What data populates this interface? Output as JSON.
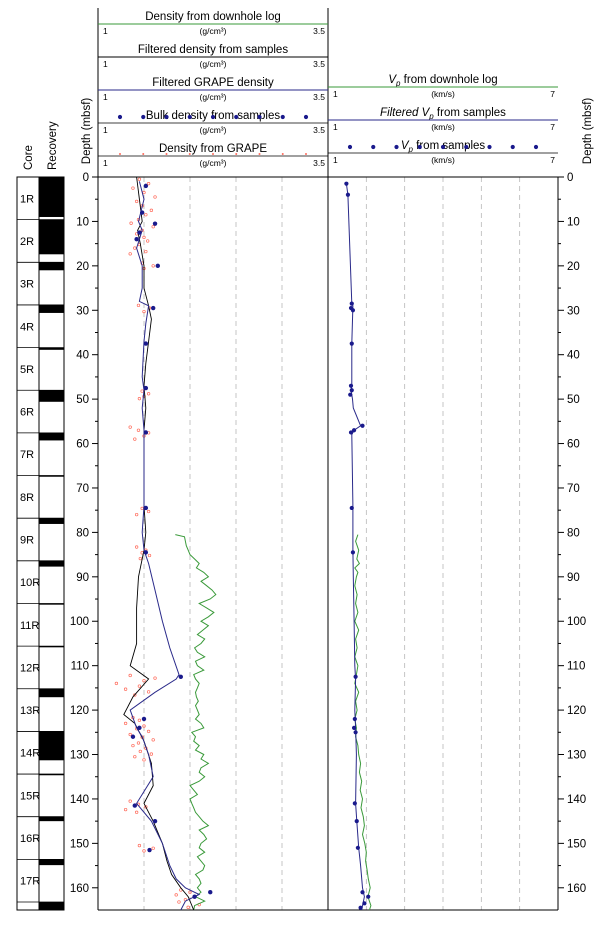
{
  "chart_data": {
    "type": "line",
    "depth_label": "Depth (mbsf)",
    "depth_range": [
      0,
      165
    ],
    "depth_ticks": [
      0,
      10,
      20,
      30,
      40,
      50,
      60,
      70,
      80,
      90,
      100,
      110,
      120,
      130,
      140,
      150,
      160
    ],
    "grid": "dashed-vertical",
    "core_column": {
      "core_label": "Core",
      "recovery_label": "Recovery",
      "cores": [
        {
          "name": "1R",
          "top": 0,
          "bottom": 9.6,
          "recovery": [
            0,
            9.0
          ]
        },
        {
          "name": "2R",
          "top": 9.6,
          "bottom": 19.2,
          "recovery": [
            9.6,
            17.4
          ]
        },
        {
          "name": "3R",
          "top": 19.2,
          "bottom": 28.8,
          "recovery": [
            19.2,
            21.0
          ]
        },
        {
          "name": "4R",
          "top": 28.8,
          "bottom": 38.4,
          "recovery": [
            28.8,
            30.6
          ]
        },
        {
          "name": "5R",
          "top": 38.4,
          "bottom": 48.0,
          "recovery": [
            38.4,
            38.9
          ]
        },
        {
          "name": "6R",
          "top": 48.0,
          "bottom": 57.6,
          "recovery": [
            48.0,
            50.6
          ]
        },
        {
          "name": "7R",
          "top": 57.6,
          "bottom": 67.2,
          "recovery": [
            57.6,
            59.3
          ]
        },
        {
          "name": "8R",
          "top": 67.2,
          "bottom": 76.8,
          "recovery": [
            67.2,
            67.4
          ]
        },
        {
          "name": "9R",
          "top": 76.8,
          "bottom": 86.4,
          "recovery": [
            76.8,
            78.1
          ]
        },
        {
          "name": "10R",
          "top": 86.4,
          "bottom": 96.0,
          "recovery": [
            86.4,
            87.7
          ]
        },
        {
          "name": "11R",
          "top": 96.0,
          "bottom": 105.6,
          "recovery": [
            96.0,
            96.2
          ]
        },
        {
          "name": "12R",
          "top": 105.6,
          "bottom": 115.2,
          "recovery": [
            105.6,
            105.8
          ]
        },
        {
          "name": "13R",
          "top": 115.2,
          "bottom": 124.8,
          "recovery": [
            115.2,
            117.1
          ]
        },
        {
          "name": "14R",
          "top": 124.8,
          "bottom": 134.4,
          "recovery": [
            124.8,
            131.3
          ]
        },
        {
          "name": "15R",
          "top": 134.4,
          "bottom": 144.0,
          "recovery": [
            134.4,
            134.6
          ]
        },
        {
          "name": "16R",
          "top": 144.0,
          "bottom": 153.6,
          "recovery": [
            144.0,
            145.0
          ]
        },
        {
          "name": "17R",
          "top": 153.6,
          "bottom": 163.2,
          "recovery": [
            153.6,
            154.9
          ]
        },
        {
          "name": "",
          "top": 163.2,
          "bottom": 165,
          "recovery": [
            163.2,
            165
          ]
        }
      ]
    },
    "density_panel": {
      "xlim": [
        1,
        3.5
      ],
      "legend": [
        {
          "label": "Density from downhole log",
          "unit": "(g/cm³)",
          "min": "1",
          "max": "3.5",
          "style": "line",
          "color": "#3a9a3a"
        },
        {
          "label": "Filtered density from samples",
          "unit": "(g/cm³)",
          "min": "1",
          "max": "3.5",
          "style": "line",
          "color": "#000000"
        },
        {
          "label": "Filtered GRAPE density",
          "unit": "(g/cm³)",
          "min": "1",
          "max": "3.5",
          "style": "line",
          "color": "#2a2a8a"
        },
        {
          "label": "Bulk density from samples",
          "unit": "(g/cm³)",
          "min": "1",
          "max": "3.5",
          "style": "dots",
          "color": "#1a1a8c"
        },
        {
          "label": "Density from GRAPE",
          "unit": "(g/cm³)",
          "min": "1",
          "max": "3.5",
          "style": "small-dots",
          "color": "#ff6a5a"
        }
      ],
      "downhole_log": {
        "depth": [
          80.5,
          81,
          82,
          83,
          84,
          85,
          86,
          87,
          88,
          89,
          90,
          91,
          92,
          93,
          94,
          95,
          96,
          97,
          98,
          99,
          100,
          101,
          102,
          103,
          104,
          105,
          106,
          107,
          108,
          109,
          110,
          111,
          112,
          113,
          114,
          115,
          116,
          117,
          118,
          119,
          120,
          121,
          122,
          123,
          124,
          125,
          126,
          127,
          128,
          129,
          130,
          131,
          132,
          133,
          134,
          135,
          136,
          137,
          138,
          139,
          140,
          141,
          142,
          143,
          144,
          145,
          146,
          147,
          148,
          149,
          150,
          151,
          152,
          153,
          154,
          155,
          156,
          157,
          158,
          159,
          160,
          161,
          162,
          163,
          164,
          165
        ],
        "values": [
          1.84,
          1.94,
          1.95,
          1.96,
          1.98,
          2.0,
          2.05,
          2.1,
          2.07,
          2.15,
          2.2,
          2.12,
          2.18,
          2.24,
          2.28,
          2.22,
          2.1,
          2.18,
          2.26,
          2.2,
          2.12,
          2.2,
          2.14,
          2.08,
          2.16,
          2.12,
          2.05,
          2.08,
          2.16,
          2.06,
          2.08,
          2.15,
          2.04,
          2.06,
          2.1,
          2.08,
          2.06,
          2.07,
          2.09,
          2.06,
          2.08,
          2.1,
          2.06,
          2.12,
          2.15,
          2.02,
          2.06,
          2.04,
          2.1,
          2.06,
          2.15,
          2.12,
          2.2,
          2.12,
          2.1,
          2.16,
          2.1,
          2.0,
          2.04,
          2.08,
          2.0,
          2.02,
          2.04,
          2.06,
          2.1,
          2.14,
          2.2,
          2.1,
          2.15,
          2.18,
          2.12,
          2.1,
          2.16,
          2.08,
          2.12,
          2.16,
          2.14,
          2.06,
          2.1,
          2.12,
          2.08,
          2.12,
          2.06,
          2.16,
          2.05,
          2.04
        ]
      },
      "filtered_samples": {
        "depth": [
          0,
          5,
          10,
          12,
          15,
          20,
          25,
          29,
          32,
          37,
          42,
          47,
          52,
          57,
          62,
          67,
          74,
          80,
          84,
          90,
          97,
          105,
          110,
          113,
          117,
          121,
          123,
          127,
          132,
          137,
          141,
          145,
          150,
          154,
          157,
          160,
          162,
          165
        ],
        "values": [
          1.42,
          1.45,
          1.48,
          1.43,
          1.46,
          1.5,
          1.5,
          1.55,
          1.58,
          1.55,
          1.52,
          1.5,
          1.52,
          1.5,
          1.5,
          1.5,
          1.5,
          1.52,
          1.5,
          1.44,
          1.42,
          1.42,
          1.35,
          1.55,
          1.38,
          1.28,
          1.4,
          1.5,
          1.58,
          1.6,
          1.5,
          1.6,
          1.7,
          1.75,
          1.8,
          1.9,
          1.98,
          2.04
        ]
      },
      "filtered_grape": {
        "depth": [
          1,
          5,
          10,
          12,
          16,
          20,
          25,
          28,
          29,
          33,
          37,
          45,
          48,
          52,
          57,
          62,
          67,
          74,
          80,
          84,
          87,
          93,
          100,
          106,
          112,
          113,
          116,
          120,
          124,
          126,
          130,
          135,
          141,
          145,
          150,
          155,
          158,
          160,
          161.5,
          163,
          165
        ],
        "values": [
          1.45,
          1.5,
          1.44,
          1.48,
          1.42,
          1.48,
          1.48,
          1.45,
          1.55,
          1.52,
          1.5,
          1.48,
          1.5,
          1.48,
          1.5,
          1.5,
          1.5,
          1.5,
          1.48,
          1.5,
          1.55,
          1.62,
          1.7,
          1.78,
          1.88,
          1.85,
          1.62,
          1.35,
          1.42,
          1.48,
          1.55,
          1.6,
          1.42,
          1.58,
          1.7,
          1.78,
          1.85,
          1.95,
          2.1,
          1.95,
          1.9
        ]
      },
      "bulk_samples": {
        "depth": [
          2,
          8,
          10.5,
          12.5,
          14,
          20,
          29.5,
          37.5,
          47.5,
          57.5,
          74.5,
          84.5,
          112.5,
          122,
          124,
          126,
          141.5,
          145,
          151.5,
          161,
          162
        ],
        "values": [
          1.52,
          1.48,
          1.62,
          1.45,
          1.42,
          1.65,
          1.6,
          1.52,
          1.52,
          1.52,
          1.52,
          1.52,
          1.9,
          1.5,
          1.45,
          1.38,
          1.4,
          1.62,
          1.56,
          2.22,
          2.05
        ]
      },
      "grape": {
        "depth": [
          0.5,
          1.5,
          2.5,
          3.5,
          4.5,
          5.5,
          6.5,
          7.5,
          8.5,
          9.6,
          10.4,
          11.2,
          12.0,
          12.8,
          13.6,
          14.4,
          15.2,
          16.0,
          16.8,
          17.3,
          19.4,
          20.0,
          20.6,
          28.9,
          29.5,
          30.3,
          47.6,
          48.2,
          48.8,
          49.4,
          49.9,
          56.3,
          57.0,
          57.6,
          58.3,
          59.0,
          74.6,
          75.3,
          76.0,
          83.3,
          84.0,
          84.6,
          85.2,
          85.9,
          112.2,
          112.8,
          113.4,
          114.0,
          114.6,
          115.3,
          115.9,
          116.6,
          121.7,
          122.3,
          123.0,
          123.6,
          124.2,
          124.8,
          125.5,
          126.1,
          126.7,
          127.4,
          128.0,
          128.6,
          129.3,
          129.9,
          130.5,
          131.2,
          140.5,
          141.2,
          141.8,
          142.4,
          143.0,
          150.5,
          151.1,
          151.7,
          160.5,
          161.0,
          161.6,
          162.1,
          162.7,
          163.2,
          163.8,
          164.4
        ],
        "values": [
          1.45,
          1.55,
          1.38,
          1.5,
          1.62,
          1.42,
          1.48,
          1.58,
          1.52,
          1.44,
          1.36,
          1.6,
          1.48,
          1.42,
          1.5,
          1.54,
          1.45,
          1.4,
          1.52,
          1.35,
          1.48,
          1.6,
          1.5,
          1.44,
          1.56,
          1.5,
          1.52,
          1.48,
          1.55,
          1.5,
          1.45,
          1.35,
          1.44,
          1.55,
          1.5,
          1.4,
          1.48,
          1.55,
          1.42,
          1.42,
          1.52,
          1.48,
          1.56,
          1.46,
          1.35,
          1.62,
          1.5,
          1.2,
          1.45,
          1.3,
          1.55,
          1.4,
          1.38,
          1.45,
          1.3,
          1.5,
          1.42,
          1.55,
          1.35,
          1.48,
          1.6,
          1.44,
          1.38,
          1.52,
          1.46,
          1.58,
          1.4,
          1.5,
          1.35,
          1.44,
          1.52,
          1.3,
          1.42,
          1.45,
          1.6,
          1.5,
          1.9,
          2.0,
          1.85,
          2.05,
          1.95,
          1.88,
          2.1,
          1.98
        ]
      }
    },
    "vp_panel": {
      "xlim": [
        1,
        7
      ],
      "legend": [
        {
          "label_symbol": "V",
          "label_sub": "p",
          "label_rest": " from downhole log",
          "unit": "(km/s)",
          "min": "1",
          "max": "7",
          "style": "line",
          "color": "#3a9a3a"
        },
        {
          "label_symbol": "Filtered V",
          "label_sub": "p",
          "label_rest": " from samples",
          "unit": "(km/s)",
          "min": "1",
          "max": "7",
          "style": "line",
          "color": "#2a2a8a"
        },
        {
          "label_symbol": "V",
          "label_sub": "p",
          "label_rest": " from samples",
          "unit": "(km/s)",
          "min": "1",
          "max": "7",
          "style": "dots",
          "color": "#1a1a8c"
        }
      ],
      "downhole_log": {
        "depth": [
          80.5,
          82,
          84,
          86,
          87,
          88,
          89,
          90,
          92,
          94,
          96,
          98,
          100,
          102,
          104,
          106,
          108,
          110,
          112,
          114,
          116,
          118,
          120,
          122,
          124,
          126,
          128,
          130,
          132,
          134,
          136,
          138,
          140,
          142,
          144,
          146,
          148,
          150,
          152,
          154,
          156,
          158,
          160,
          162,
          164,
          165
        ],
        "values": [
          1.78,
          1.72,
          1.8,
          1.75,
          1.82,
          1.7,
          1.78,
          1.74,
          1.7,
          1.76,
          1.72,
          1.78,
          1.7,
          1.8,
          1.72,
          1.76,
          1.7,
          1.78,
          1.74,
          1.7,
          1.8,
          1.72,
          1.76,
          1.7,
          1.74,
          1.72,
          1.78,
          1.8,
          1.85,
          1.82,
          1.88,
          1.84,
          1.9,
          1.86,
          1.92,
          1.95,
          1.9,
          1.96,
          2.0,
          1.98,
          2.02,
          2.05,
          2.1,
          2.04,
          2.12,
          2.08
        ]
      },
      "filtered_samples": {
        "depth": [
          1.5,
          4,
          28.5,
          29,
          37.5,
          47,
          48,
          50,
          52,
          56,
          57,
          58,
          74,
          80,
          84,
          90,
          100,
          110,
          113,
          120,
          124,
          130,
          141,
          145,
          151,
          155,
          160,
          162,
          164,
          165
        ],
        "values": [
          1.48,
          1.52,
          1.62,
          1.65,
          1.62,
          1.62,
          1.6,
          1.64,
          1.66,
          1.85,
          1.68,
          1.62,
          1.65,
          1.65,
          1.65,
          1.66,
          1.68,
          1.7,
          1.72,
          1.7,
          1.72,
          1.74,
          1.72,
          1.75,
          1.8,
          1.85,
          1.9,
          1.95,
          1.9,
          1.88
        ]
      },
      "samples": {
        "depth": [
          1.5,
          4,
          28.5,
          29.5,
          30,
          37.5,
          47,
          48,
          49,
          56,
          57,
          57.5,
          74.5,
          84.5,
          112.5,
          122,
          124,
          125,
          141,
          145,
          151,
          161,
          162,
          163.5,
          164.5
        ],
        "values": [
          1.48,
          1.52,
          1.62,
          1.6,
          1.65,
          1.62,
          1.6,
          1.62,
          1.58,
          1.9,
          1.68,
          1.6,
          1.62,
          1.65,
          1.72,
          1.7,
          1.68,
          1.72,
          1.7,
          1.75,
          1.78,
          1.9,
          2.05,
          1.95,
          1.85
        ]
      }
    }
  }
}
